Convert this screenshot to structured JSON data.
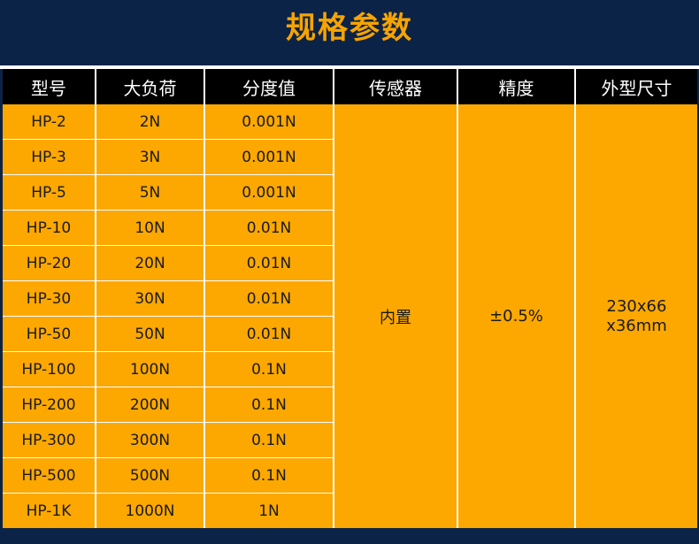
{
  "title": "规格参数",
  "columns": [
    "型号",
    "大负荷",
    "分度值",
    "传感器",
    "精度",
    "外型尺寸"
  ],
  "rows": [
    {
      "model": "HP-2",
      "load": "2N",
      "division": "0.001N"
    },
    {
      "model": "HP-3",
      "load": "3N",
      "division": "0.001N"
    },
    {
      "model": "HP-5",
      "load": "5N",
      "division": "0.001N"
    },
    {
      "model": "HP-10",
      "load": "10N",
      "division": "0.01N"
    },
    {
      "model": "HP-20",
      "load": "20N",
      "division": "0.01N"
    },
    {
      "model": "HP-30",
      "load": "30N",
      "division": "0.01N"
    },
    {
      "model": "HP-50",
      "load": "50N",
      "division": "0.01N"
    },
    {
      "model": "HP-100",
      "load": "100N",
      "division": "0.1N"
    },
    {
      "model": "HP-200",
      "load": "200N",
      "division": "0.1N"
    },
    {
      "model": "HP-300",
      "load": "300N",
      "division": "0.1N"
    },
    {
      "model": "HP-500",
      "load": "500N",
      "division": "0.1N"
    },
    {
      "model": "HP-1K",
      "load": "1000N",
      "division": "1N"
    }
  ],
  "shared": {
    "sensor": "内置",
    "accuracy": "±0.5%",
    "dimensions_line1": "230x66",
    "dimensions_line2": "x36mm"
  },
  "colors": {
    "background": "#0b2347",
    "title": "#f7a400",
    "header_bg": "#000000",
    "cell_bg": "#fca800"
  }
}
